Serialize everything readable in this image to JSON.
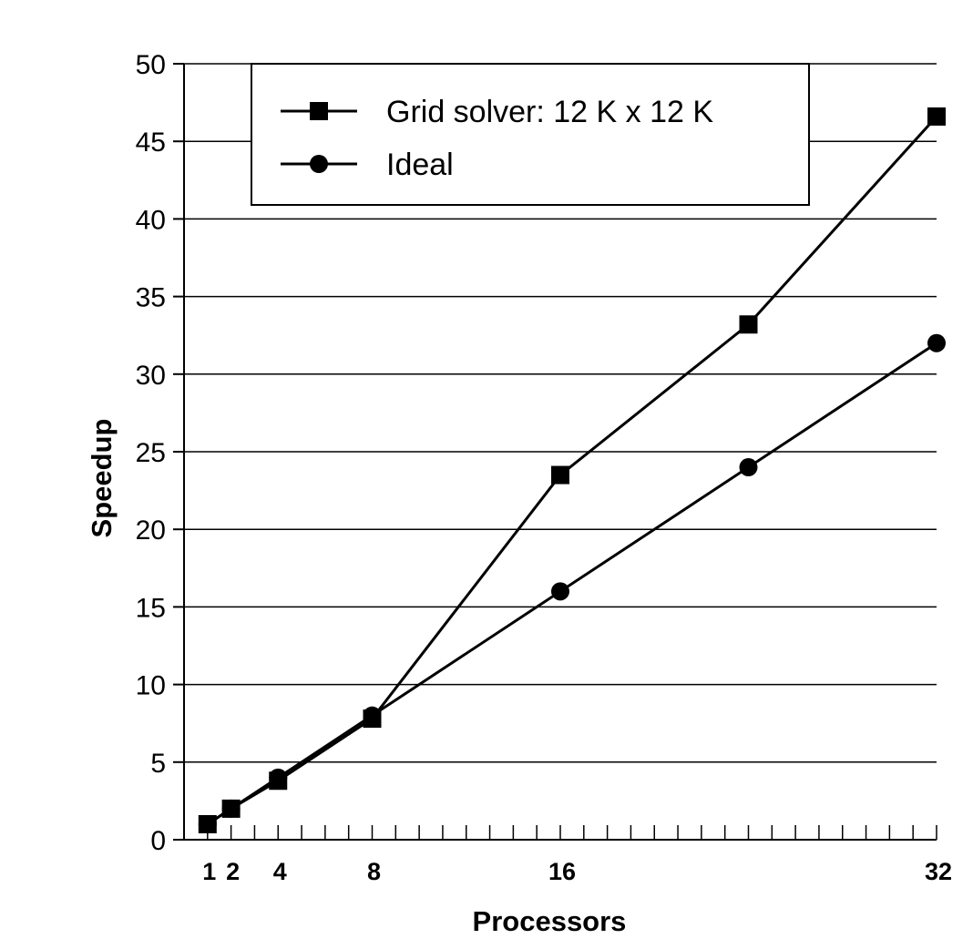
{
  "chart_data": {
    "type": "line",
    "xlabel": "Processors",
    "ylabel": "Speedup",
    "xlim": [
      0,
      32
    ],
    "ylim": [
      0,
      50
    ],
    "x_ticks": [
      1,
      2,
      4,
      8,
      16,
      32
    ],
    "x_minor_step": 1,
    "y_ticks": [
      0,
      5,
      10,
      15,
      20,
      25,
      30,
      35,
      40,
      45,
      50
    ],
    "grid": "horizontal",
    "legend_position": "top",
    "colors": {
      "line": "#000000",
      "grid": "#000000",
      "background": "#ffffff"
    },
    "series": [
      {
        "name": "Grid solver: 12 K x 12 K",
        "marker": "square",
        "x": [
          1,
          2,
          4,
          8,
          16,
          24,
          32
        ],
        "y": [
          1,
          2,
          3.8,
          7.8,
          23.5,
          33.2,
          46.6
        ]
      },
      {
        "name": "Ideal",
        "marker": "circle",
        "x": [
          1,
          2,
          4,
          8,
          16,
          24,
          32
        ],
        "y": [
          1,
          2,
          4,
          8,
          16,
          24,
          32
        ]
      }
    ]
  }
}
